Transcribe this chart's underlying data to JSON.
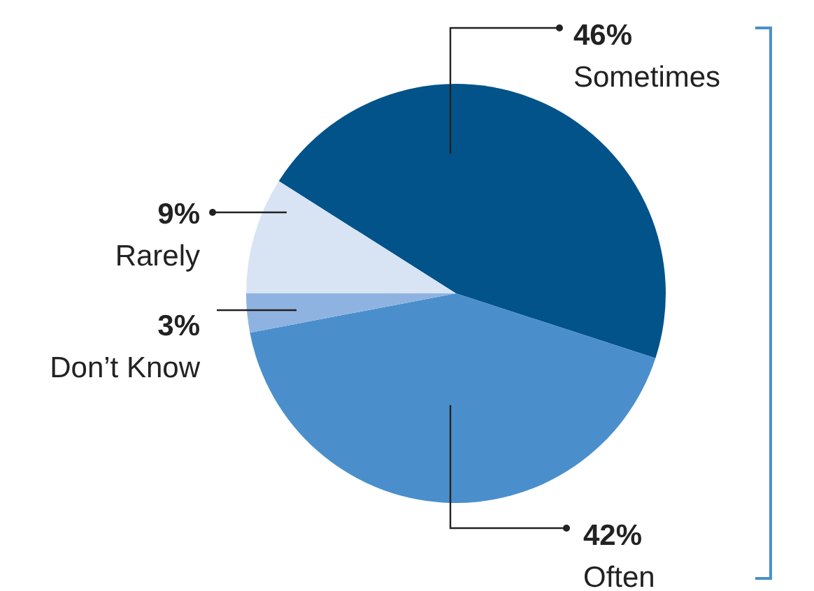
{
  "chart_data": {
    "type": "pie",
    "categories": [
      "Sometimes",
      "Often",
      "Don’t Know",
      "Rarely"
    ],
    "values": [
      46,
      42,
      3,
      9
    ],
    "colors": [
      "#02538a",
      "#4a8fcc",
      "#8fb3e0",
      "#d8e3f3"
    ],
    "value_labels": [
      "46%",
      "42%",
      "3%",
      "9%"
    ],
    "legend": false
  }
}
